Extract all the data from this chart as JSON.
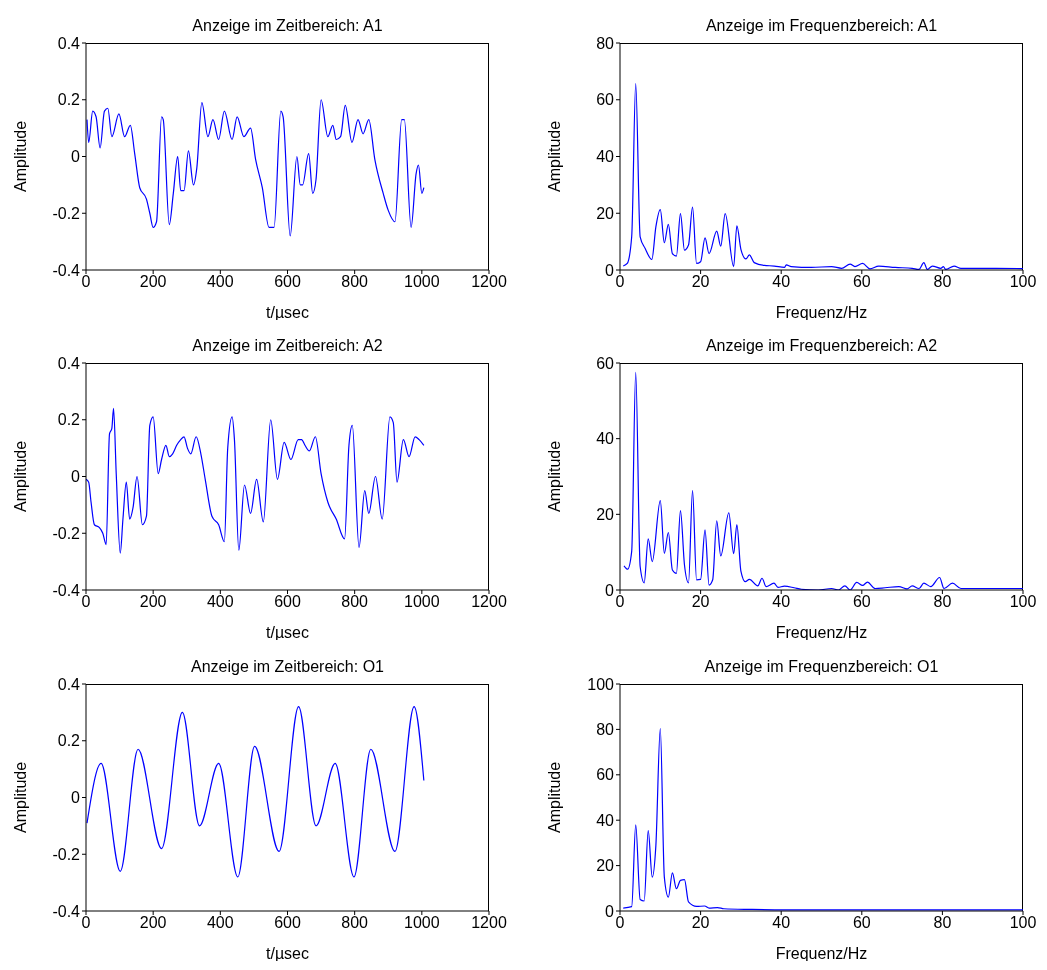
{
  "chart_data": [
    {
      "type": "line",
      "title": "Anzeige im Zeitbereich: A1",
      "xlabel": "t/µsec",
      "ylabel": "Amplitude",
      "xlim": [
        0,
        1200
      ],
      "xticks": [
        0,
        200,
        400,
        600,
        800,
        1000,
        1200
      ],
      "ylim": [
        -0.4,
        0.4
      ],
      "yticks": [
        -0.4,
        -0.2,
        0,
        0.2,
        0.4
      ],
      "x": [
        3,
        8,
        20,
        30,
        42,
        55,
        65,
        77,
        98,
        115,
        132,
        145,
        160,
        180,
        190,
        200,
        210,
        225,
        230,
        248,
        260,
        273,
        282,
        292,
        305,
        320,
        330,
        345,
        363,
        378,
        395,
        412,
        435,
        450,
        470,
        490,
        505,
        525,
        545,
        560,
        580,
        587,
        608,
        628,
        638,
        645,
        663,
        675,
        685,
        700,
        720,
        735,
        745,
        758,
        772,
        792,
        810,
        825,
        842,
        860,
        885,
        900,
        920,
        940,
        948,
        968,
        983,
        990,
        1000,
        1006
      ],
      "series": [
        {
          "color": "#0000ff",
          "values": [
            0.13,
            0.05,
            0.16,
            0.14,
            0.03,
            0.16,
            0.17,
            0.07,
            0.15,
            0.07,
            0.11,
            0.01,
            -0.11,
            -0.15,
            -0.2,
            -0.25,
            -0.23,
            0.14,
            0.13,
            -0.24,
            -0.13,
            0,
            -0.12,
            -0.12,
            0.02,
            -0.1,
            -0.04,
            0.19,
            0.07,
            0.13,
            0.06,
            0.16,
            0.06,
            0.14,
            0.07,
            0.1,
            -0.01,
            -0.11,
            -0.25,
            -0.25,
            0.16,
            0.14,
            -0.28,
            0,
            -0.1,
            -0.1,
            0.01,
            -0.13,
            -0.08,
            0.2,
            0.07,
            0.11,
            0.06,
            0.07,
            0.18,
            0.05,
            0.13,
            0.08,
            0.13,
            -0.01,
            -0.13,
            -0.19,
            -0.23,
            0.13,
            0.13,
            -0.25,
            -0.06,
            -0.03,
            -0.13,
            -0.11
          ]
        }
      ]
    },
    {
      "type": "line",
      "title": "Anzeige im Frequenzbereich: A1",
      "xlabel": "Frequenz/Hz",
      "ylabel": "Amplitude",
      "xlim": [
        0,
        100
      ],
      "xticks": [
        0,
        20,
        40,
        60,
        80,
        100
      ],
      "ylim": [
        0,
        80
      ],
      "yticks": [
        0,
        20,
        40,
        60,
        80
      ],
      "x": [
        0.8,
        1.8,
        2.9,
        3.9,
        5,
        6.25,
        7.9,
        8.9,
        10,
        11,
        12,
        13,
        14,
        15,
        16,
        17,
        18,
        19,
        20,
        21.1,
        22.1,
        24,
        25,
        26.1,
        28.2,
        29,
        30,
        31.25,
        32.1,
        33.3,
        35.8,
        38.3,
        40.8,
        41.25,
        42.5,
        47.5,
        52.5,
        55,
        57.1,
        58.3,
        60.2,
        62,
        64.2,
        68.3,
        72.5,
        74.2,
        75.4,
        76.25,
        77.5,
        79.6,
        80.25,
        80.8,
        82.9,
        84.6,
        89.2,
        93.3,
        100
      ],
      "series": [
        {
          "color": "#0000ff",
          "values": [
            1.4,
            2.3,
            11.7,
            65.7,
            11.7,
            7.6,
            3.7,
            15.2,
            21.3,
            9.6,
            16.1,
            5.8,
            4.9,
            19.9,
            7,
            8.8,
            22.2,
            2.3,
            2.9,
            11.3,
            5.8,
            13.7,
            8.4,
            19.9,
            1.2,
            15.6,
            7.3,
            3.9,
            5.3,
            2.6,
            1.6,
            1.4,
            0.9,
            1.8,
            1.2,
            0.9,
            1.2,
            0.6,
            2.1,
            1.2,
            2.3,
            0.4,
            1.4,
            0.9,
            0.6,
            0.2,
            2.6,
            0.2,
            1.4,
            0.6,
            1.2,
            0.2,
            1.4,
            0.6,
            0.6,
            0.6,
            0.5
          ]
        }
      ]
    },
    {
      "type": "line",
      "title": "Anzeige im Zeitbereich: A2",
      "xlabel": "t/µsec",
      "ylabel": "Amplitude",
      "xlim": [
        0,
        1200
      ],
      "xticks": [
        0,
        200,
        400,
        600,
        800,
        1000,
        1200
      ],
      "ylim": [
        -0.4,
        0.4
      ],
      "yticks": [
        -0.4,
        -0.2,
        0,
        0.2,
        0.4
      ],
      "x": [
        0,
        8,
        15,
        25,
        40,
        50,
        60,
        70,
        77,
        82,
        90,
        102,
        110,
        120,
        130,
        140,
        152,
        168,
        180,
        190,
        200,
        215,
        225,
        238,
        248,
        258,
        270,
        282,
        292,
        302,
        312,
        328,
        342,
        355,
        375,
        395,
        412,
        422,
        435,
        442,
        455,
        472,
        490,
        508,
        528,
        550,
        570,
        590,
        610,
        632,
        642,
        652,
        665,
        683,
        700,
        720,
        745,
        770,
        783,
        793,
        813,
        830,
        842,
        862,
        882,
        905,
        915,
        926,
        945,
        962,
        980,
        992,
        1006
      ],
      "series": [
        {
          "color": "#0000ff",
          "values": [
            -0.01,
            -0.02,
            -0.09,
            -0.17,
            -0.18,
            -0.2,
            -0.24,
            0.15,
            0.17,
            0.24,
            0.01,
            -0.27,
            -0.15,
            -0.02,
            -0.15,
            -0.11,
            0,
            -0.17,
            -0.14,
            0.18,
            0.21,
            0.01,
            0.06,
            0.11,
            0.07,
            0.08,
            0.11,
            0.13,
            0.14,
            0.1,
            0.08,
            0.14,
            0.08,
            -0.01,
            -0.14,
            -0.17,
            -0.23,
            0.1,
            0.21,
            0.13,
            -0.26,
            -0.03,
            -0.13,
            -0.01,
            -0.16,
            0.2,
            -0.01,
            0.12,
            0.06,
            0.13,
            0.13,
            0.11,
            0.09,
            0.14,
            0.01,
            -0.09,
            -0.15,
            -0.22,
            0.11,
            0.18,
            -0.25,
            -0.05,
            -0.13,
            0,
            -0.15,
            0.21,
            0.19,
            -0.02,
            0.13,
            0.07,
            0.14,
            0.13,
            0.11
          ]
        }
      ]
    },
    {
      "type": "line",
      "title": "Anzeige im Frequenzbereich: A2",
      "xlabel": "Frequenz/Hz",
      "ylabel": "Amplitude",
      "xlim": [
        0,
        100
      ],
      "xticks": [
        0,
        20,
        40,
        60,
        80,
        100
      ],
      "ylim": [
        0,
        60
      ],
      "yticks": [
        0,
        20,
        40,
        60
      ],
      "x": [
        1,
        1.9,
        2.9,
        3.9,
        5,
        6,
        7,
        8,
        10,
        11,
        12,
        13,
        14,
        15,
        16,
        17,
        18,
        19,
        20,
        21.1,
        22.1,
        23,
        24,
        25,
        27,
        28.2,
        29,
        30,
        31.1,
        32.1,
        34.2,
        35.25,
        36.25,
        38.2,
        39.2,
        40.8,
        43.2,
        45,
        49.2,
        52.5,
        54.2,
        55.8,
        57.1,
        58.75,
        60.2,
        61.4,
        63.3,
        65.8,
        69.2,
        71.25,
        72.5,
        74.2,
        75.4,
        77.1,
        79.3,
        80.4,
        82.5,
        84.6,
        89.2,
        93.3,
        100
      ],
      "series": [
        {
          "color": "#0000ff",
          "values": [
            6.4,
            5.5,
            10.2,
            57.5,
            6.2,
            1.9,
            13.5,
            7.5,
            23.6,
            9.7,
            15.2,
            5.3,
            4.4,
            21,
            6.6,
            1.9,
            26.3,
            2.7,
            2.8,
            15.9,
            1.3,
            2.7,
            18.3,
            9,
            20.4,
            9.6,
            17.3,
            5,
            2.2,
            2.8,
            1.1,
            3.1,
            0.9,
            1.8,
            0.7,
            1,
            0.6,
            0.2,
            0,
            0.4,
            0,
            1.1,
            0,
            2,
            1.2,
            2.1,
            0.4,
            0.6,
            0.9,
            0.3,
            1.1,
            0.4,
            1.8,
            0.9,
            3.3,
            0.4,
            1.8,
            0.4,
            0.4,
            0.4,
            0.4
          ]
        }
      ]
    },
    {
      "type": "line",
      "title": "Anzeige im Zeitbereich: O1",
      "xlabel": "t/µsec",
      "ylabel": "Amplitude",
      "xlim": [
        0,
        1200
      ],
      "xticks": [
        0,
        200,
        400,
        600,
        800,
        1000,
        1200
      ],
      "ylim": [
        -0.4,
        0.4
      ],
      "yticks": [
        -0.4,
        -0.2,
        0,
        0.2,
        0.4
      ],
      "x": [
        3,
        45,
        102,
        155,
        225,
        287,
        338,
        395,
        452,
        502,
        575,
        633,
        685,
        742,
        798,
        848,
        920,
        977,
        1006
      ],
      "series": [
        {
          "color": "#0000ff",
          "values": [
            -0.09,
            0.12,
            -0.26,
            0.17,
            -0.18,
            0.3,
            -0.1,
            0.12,
            -0.28,
            0.18,
            -0.19,
            0.32,
            -0.1,
            0.12,
            -0.28,
            0.17,
            -0.19,
            0.32,
            0.06
          ]
        }
      ]
    },
    {
      "type": "line",
      "title": "Anzeige im Frequenzbereich: O1",
      "xlabel": "Frequenz/Hz",
      "ylabel": "Amplitude",
      "xlim": [
        0,
        100
      ],
      "xticks": [
        0,
        20,
        40,
        60,
        80,
        100
      ],
      "ylim": [
        0,
        100
      ],
      "yticks": [
        0,
        20,
        40,
        60,
        80,
        100
      ],
      "x": [
        0.8,
        2.9,
        3.9,
        5,
        6,
        7,
        8,
        8.9,
        10,
        11,
        12,
        13,
        14,
        15,
        16,
        17,
        19,
        21,
        22.1,
        24.2,
        25.8,
        32.5,
        40.8,
        55.8,
        60.8,
        80.8,
        100
      ],
      "series": [
        {
          "color": "#0000ff",
          "values": [
            1.3,
            1.9,
            37.9,
            5.1,
            4.4,
            35.4,
            14.9,
            28.8,
            80.4,
            14.9,
            6.1,
            16.8,
            9.8,
            13.5,
            13.8,
            4,
            2,
            2.2,
            1.3,
            1.5,
            1,
            0.7,
            0.5,
            0.5,
            0.5,
            0.5,
            0.5
          ]
        }
      ]
    }
  ]
}
